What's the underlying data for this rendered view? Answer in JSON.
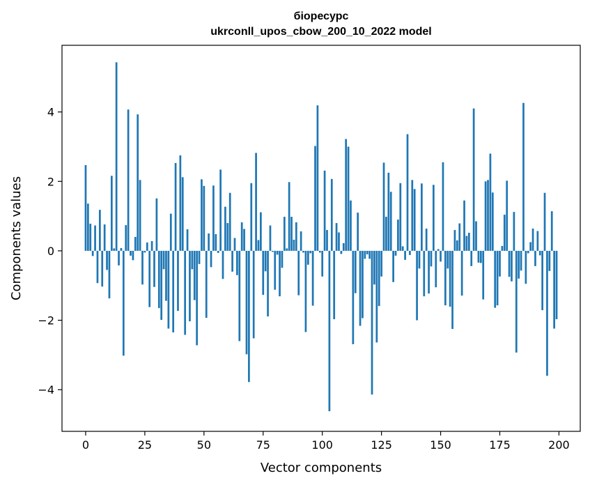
{
  "chart_data": {
    "type": "bar",
    "title_line1": "біоресурс",
    "title_line2": "ukrconll_upos_cbow_200_10_2022 model",
    "xlabel": "Vector components",
    "ylabel": "Components values",
    "xlim": [
      -10,
      209
    ],
    "ylim": [
      -5.2,
      5.92
    ],
    "x_ticks": [
      0,
      25,
      50,
      75,
      100,
      125,
      150,
      175,
      200
    ],
    "y_ticks": [
      -4,
      -2,
      0,
      2,
      4
    ],
    "y_tick_labels": [
      "−4",
      "−2",
      "0",
      "2",
      "4"
    ],
    "grid": false,
    "bar_color": "#1f77b4",
    "values": [
      2.47,
      1.36,
      0.78,
      -0.15,
      0.73,
      -0.93,
      1.18,
      -1.03,
      0.76,
      -0.55,
      -1.37,
      2.16,
      0.07,
      5.43,
      -0.42,
      0.08,
      -3.02,
      0.74,
      4.07,
      -0.14,
      -0.27,
      0.4,
      3.93,
      2.04,
      -0.97,
      -0.05,
      0.24,
      -1.62,
      0.28,
      -1.04,
      1.51,
      -1.65,
      -1.99,
      -0.53,
      -1.44,
      -2.24,
      1.07,
      -2.35,
      2.53,
      -1.73,
      2.75,
      2.12,
      -2.42,
      0.62,
      -2.03,
      -0.53,
      -1.42,
      -2.72,
      -0.38,
      2.06,
      1.87,
      -1.93,
      0.5,
      -0.47,
      1.88,
      0.48,
      -0.06,
      2.34,
      -0.81,
      1.27,
      0.8,
      1.67,
      -0.6,
      0.37,
      -0.7,
      -2.6,
      0.82,
      0.63,
      -2.98,
      -3.78,
      1.95,
      -2.52,
      2.82,
      0.31,
      1.11,
      -1.27,
      -0.59,
      -1.89,
      0.73,
      -0.03,
      -1.12,
      -0.11,
      -1.31,
      -0.49,
      0.98,
      0.07,
      1.98,
      0.98,
      0.32,
      0.82,
      -1.28,
      0.56,
      -0.05,
      -2.34,
      -0.4,
      -0.07,
      -1.58,
      3.02,
      4.19,
      -0.05,
      -0.74,
      2.31,
      0.6,
      -4.62,
      2.07,
      -1.97,
      0.8,
      0.53,
      -0.09,
      0.22,
      3.22,
      3.0,
      1.45,
      -2.69,
      -1.22,
      1.1,
      -2.16,
      -1.94,
      -0.23,
      -0.1,
      -0.23,
      -4.14,
      -0.97,
      -2.64,
      -1.59,
      -0.74,
      2.54,
      0.98,
      2.25,
      1.7,
      -0.9,
      -0.14,
      0.9,
      1.95,
      0.13,
      -0.26,
      3.36,
      -0.12,
      2.04,
      1.78,
      -2.0,
      -0.51,
      1.94,
      -1.31,
      0.64,
      -1.23,
      -0.45,
      1.9,
      -1.05,
      0.05,
      -0.31,
      2.55,
      -1.57,
      -0.51,
      -1.61,
      -2.25,
      0.6,
      0.3,
      0.79,
      -1.29,
      1.45,
      0.43,
      0.52,
      -0.44,
      4.1,
      0.85,
      -0.34,
      -0.35,
      -1.4,
      2.0,
      2.04,
      2.8,
      1.68,
      -1.64,
      -1.57,
      -0.74,
      0.14,
      1.04,
      2.02,
      -0.75,
      -0.88,
      1.12,
      -2.93,
      -0.8,
      -0.57,
      4.26,
      -0.95,
      -0.07,
      0.25,
      0.64,
      -0.44,
      0.57,
      -0.13,
      -1.71,
      1.67,
      -3.6,
      -0.58,
      1.14,
      -2.24,
      -1.97
    ]
  }
}
